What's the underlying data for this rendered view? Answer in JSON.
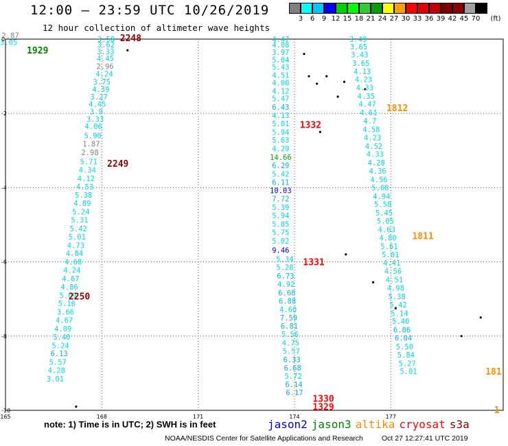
{
  "header": {
    "title": "12:00 — 23:59 UTC 10/26/2019",
    "subtitle": "12 hour collection of altimeter wave heights"
  },
  "colorbar": {
    "unit_label": "(ft)",
    "colors": [
      "#808080",
      "#00ffff",
      "#00c8ff",
      "#0000ff",
      "#00d000",
      "#00ff00",
      "#33cc33",
      "#00a000",
      "#ffff00",
      "#ffa000",
      "#ff0000",
      "#e00000",
      "#c00000",
      "#800000",
      "#8b0000",
      "#a0a0a0",
      "#000000"
    ],
    "ticks": [
      "3",
      "6",
      "9",
      "12",
      "15",
      "18",
      "21",
      "24",
      "27",
      "30",
      "33",
      "36",
      "39",
      "42",
      "45",
      "70"
    ]
  },
  "axes": {
    "x_ticks": [
      165,
      168,
      171,
      174,
      177
    ],
    "y_ticks": [
      0,
      -2,
      -4,
      -6,
      -8,
      -10
    ],
    "x_range": [
      165,
      180.5
    ],
    "y_range": [
      -10,
      0
    ]
  },
  "chart_data": {
    "type": "scatter",
    "tracks": [
      {
        "revolution": "2248",
        "revolution_color": "#8b0000",
        "lat": 0.04,
        "lon": 168.9
      },
      {
        "revolution": "1929",
        "revolution_color": "#008000",
        "lat": -0.3,
        "lon": 166.0
      },
      {
        "revolution": "2249",
        "revolution_color": "#8b0000",
        "lat": -3.35,
        "lon": 168.5
      },
      {
        "revolution": "2250",
        "revolution_color": "#8b0000",
        "lat": -6.92,
        "lon": 167.3
      },
      {
        "revolution": "1812",
        "revolution_color": "#ff8c00",
        "lat": -1.85,
        "lon": 177.2
      },
      {
        "revolution": "1811",
        "revolution_color": "#ff8c00",
        "lat": -5.3,
        "lon": 178.0
      },
      {
        "revolution": "1332",
        "revolution_color": "#ff0000",
        "lat": -2.3,
        "lon": 174.5
      },
      {
        "revolution": "1331",
        "revolution_color": "#ff0000",
        "lat": -6.0,
        "lon": 174.6
      },
      {
        "revolution": "1330",
        "revolution_color": "#ff0000",
        "lat": -9.68,
        "lon": 174.9
      },
      {
        "revolution": "1329",
        "revolution_color": "#ff0000",
        "lat": -9.9,
        "lon": 174.9
      },
      {
        "revolution": "181",
        "revolution_color": "#ff8c00",
        "lat": -8.95,
        "lon": 180.2
      },
      {
        "revolution": "1",
        "revolution_color": "#ff8c00",
        "lat": -9.98,
        "lon": 180.3
      }
    ],
    "points": [
      {
        "lon": 165.15,
        "lat": 0.1,
        "value": "2.87"
      },
      {
        "lon": 165.1,
        "lat": -0.08,
        "value": "3.05"
      },
      {
        "lon": 168.13,
        "lat": 0.0,
        "value": "3.58"
      },
      {
        "lon": 168.13,
        "lat": -0.15,
        "value": "3.62"
      },
      {
        "lon": 168.12,
        "lat": -0.33,
        "value": "3.33"
      },
      {
        "lon": 168.11,
        "lat": -0.52,
        "value": "4.45"
      },
      {
        "lon": 168.1,
        "lat": -0.73,
        "value": "2.96"
      },
      {
        "lon": 168.08,
        "lat": -0.93,
        "value": "4.24"
      },
      {
        "lon": 168.0,
        "lat": -1.15,
        "value": "3.75"
      },
      {
        "lon": 167.97,
        "lat": -1.35,
        "value": "4.39"
      },
      {
        "lon": 167.91,
        "lat": -1.55,
        "value": "3.27"
      },
      {
        "lon": 167.86,
        "lat": -1.75,
        "value": "4.45"
      },
      {
        "lon": 167.83,
        "lat": -1.95,
        "value": "3.9"
      },
      {
        "lon": 167.79,
        "lat": -2.15,
        "value": "3.33"
      },
      {
        "lon": 167.74,
        "lat": -2.35,
        "value": "4.06"
      },
      {
        "lon": 167.72,
        "lat": -2.6,
        "value": "5.90"
      },
      {
        "lon": 167.67,
        "lat": -2.82,
        "value": "1.87"
      },
      {
        "lon": 167.63,
        "lat": -3.05,
        "value": "2.98"
      },
      {
        "lon": 167.59,
        "lat": -3.3,
        "value": "5.71"
      },
      {
        "lon": 167.55,
        "lat": -3.52,
        "value": "4.34"
      },
      {
        "lon": 167.51,
        "lat": -3.75,
        "value": "4.12"
      },
      {
        "lon": 167.47,
        "lat": -3.97,
        "value": "4.53"
      },
      {
        "lon": 167.43,
        "lat": -4.2,
        "value": "5.38"
      },
      {
        "lon": 167.39,
        "lat": -4.42,
        "value": "4.89"
      },
      {
        "lon": 167.35,
        "lat": -4.65,
        "value": "5.24"
      },
      {
        "lon": 167.31,
        "lat": -4.87,
        "value": "5.31"
      },
      {
        "lon": 167.27,
        "lat": -5.1,
        "value": "5.42"
      },
      {
        "lon": 167.23,
        "lat": -5.32,
        "value": "5.01"
      },
      {
        "lon": 167.19,
        "lat": -5.55,
        "value": "4.73"
      },
      {
        "lon": 167.15,
        "lat": -5.77,
        "value": "4.84"
      },
      {
        "lon": 167.11,
        "lat": -6.0,
        "value": "4.68"
      },
      {
        "lon": 167.07,
        "lat": -6.22,
        "value": "4.24"
      },
      {
        "lon": 167.03,
        "lat": -6.45,
        "value": "4.67"
      },
      {
        "lon": 166.99,
        "lat": -6.67,
        "value": "4.86"
      },
      {
        "lon": 166.95,
        "lat": -6.9,
        "value": "5.09"
      },
      {
        "lon": 166.91,
        "lat": -7.12,
        "value": "5.16"
      },
      {
        "lon": 166.87,
        "lat": -7.35,
        "value": "3.66"
      },
      {
        "lon": 166.83,
        "lat": -7.57,
        "value": "4.67"
      },
      {
        "lon": 166.79,
        "lat": -7.8,
        "value": "4.09"
      },
      {
        "lon": 166.75,
        "lat": -8.02,
        "value": "5.40"
      },
      {
        "lon": 166.71,
        "lat": -8.25,
        "value": "5.24"
      },
      {
        "lon": 166.67,
        "lat": -8.47,
        "value": "6.13"
      },
      {
        "lon": 166.63,
        "lat": -8.7,
        "value": "5.57"
      },
      {
        "lon": 166.59,
        "lat": -8.92,
        "value": "4.28"
      },
      {
        "lon": 166.55,
        "lat": -9.15,
        "value": "3.01"
      },
      {
        "lon": 173.57,
        "lat": 0.0,
        "value": "4.47"
      },
      {
        "lon": 173.57,
        "lat": -0.15,
        "value": "4.08"
      },
      {
        "lon": 173.57,
        "lat": -0.35,
        "value": "3.97"
      },
      {
        "lon": 173.57,
        "lat": -0.55,
        "value": "5.04"
      },
      {
        "lon": 173.57,
        "lat": -0.75,
        "value": "5.43"
      },
      {
        "lon": 173.57,
        "lat": -0.97,
        "value": "4.51"
      },
      {
        "lon": 173.57,
        "lat": -1.17,
        "value": "4.00"
      },
      {
        "lon": 173.57,
        "lat": -1.4,
        "value": "4.12"
      },
      {
        "lon": 173.57,
        "lat": -1.6,
        "value": "5.47"
      },
      {
        "lon": 173.57,
        "lat": -1.83,
        "value": "6.43"
      },
      {
        "lon": 173.57,
        "lat": -2.05,
        "value": "4.13"
      },
      {
        "lon": 173.57,
        "lat": -2.27,
        "value": "5.01"
      },
      {
        "lon": 173.57,
        "lat": -2.5,
        "value": "5.94"
      },
      {
        "lon": 173.57,
        "lat": -2.72,
        "value": "5.63"
      },
      {
        "lon": 173.57,
        "lat": -2.95,
        "value": "4.29"
      },
      {
        "lon": 173.57,
        "lat": -3.18,
        "value": "14.66"
      },
      {
        "lon": 173.57,
        "lat": -3.4,
        "value": "6.29"
      },
      {
        "lon": 173.57,
        "lat": -3.63,
        "value": "5.42"
      },
      {
        "lon": 173.57,
        "lat": -3.85,
        "value": "6.11"
      },
      {
        "lon": 173.57,
        "lat": -4.08,
        "value": "10.03"
      },
      {
        "lon": 173.57,
        "lat": -4.3,
        "value": "7.72"
      },
      {
        "lon": 173.57,
        "lat": -4.53,
        "value": "5.39"
      },
      {
        "lon": 173.57,
        "lat": -4.75,
        "value": "5.94"
      },
      {
        "lon": 173.57,
        "lat": -4.98,
        "value": "5.85"
      },
      {
        "lon": 173.57,
        "lat": -5.2,
        "value": "5.75"
      },
      {
        "lon": 173.57,
        "lat": -5.43,
        "value": "5.02"
      },
      {
        "lon": 173.57,
        "lat": -5.68,
        "value": "9.46"
      },
      {
        "lon": 173.7,
        "lat": -5.92,
        "value": "5.34"
      },
      {
        "lon": 173.7,
        "lat": -6.15,
        "value": "5.28"
      },
      {
        "lon": 173.72,
        "lat": -6.38,
        "value": "6.73"
      },
      {
        "lon": 173.74,
        "lat": -6.6,
        "value": "4.92"
      },
      {
        "lon": 173.76,
        "lat": -6.83,
        "value": "6.68"
      },
      {
        "lon": 173.78,
        "lat": -7.05,
        "value": "6.88"
      },
      {
        "lon": 173.8,
        "lat": -7.28,
        "value": "4.60"
      },
      {
        "lon": 173.82,
        "lat": -7.5,
        "value": "7.59"
      },
      {
        "lon": 173.84,
        "lat": -7.73,
        "value": "6.81"
      },
      {
        "lon": 173.86,
        "lat": -7.95,
        "value": "5.56"
      },
      {
        "lon": 173.88,
        "lat": -8.18,
        "value": "4.75"
      },
      {
        "lon": 173.9,
        "lat": -8.4,
        "value": "5.57"
      },
      {
        "lon": 173.92,
        "lat": -8.63,
        "value": "6.33"
      },
      {
        "lon": 173.94,
        "lat": -8.85,
        "value": "6.68"
      },
      {
        "lon": 173.96,
        "lat": -9.08,
        "value": "5.72"
      },
      {
        "lon": 173.98,
        "lat": -9.3,
        "value": "6.14"
      },
      {
        "lon": 174.0,
        "lat": -9.52,
        "value": "6.17"
      },
      {
        "lon": 175.98,
        "lat": 0.0,
        "value": "3.49"
      },
      {
        "lon": 176.0,
        "lat": -0.2,
        "value": "3.65"
      },
      {
        "lon": 176.03,
        "lat": -0.42,
        "value": "3.43"
      },
      {
        "lon": 176.07,
        "lat": -0.65,
        "value": "3.65"
      },
      {
        "lon": 176.11,
        "lat": -0.87,
        "value": "4.13"
      },
      {
        "lon": 176.15,
        "lat": -1.08,
        "value": "4.23"
      },
      {
        "lon": 176.19,
        "lat": -1.3,
        "value": "4.33"
      },
      {
        "lon": 176.23,
        "lat": -1.53,
        "value": "4.35"
      },
      {
        "lon": 176.27,
        "lat": -1.75,
        "value": "4.47"
      },
      {
        "lon": 176.31,
        "lat": -1.98,
        "value": "4.61"
      },
      {
        "lon": 176.35,
        "lat": -2.2,
        "value": "4.7"
      },
      {
        "lon": 176.39,
        "lat": -2.43,
        "value": "4.58"
      },
      {
        "lon": 176.43,
        "lat": -2.65,
        "value": "4.23"
      },
      {
        "lon": 176.47,
        "lat": -2.88,
        "value": "4.52"
      },
      {
        "lon": 176.51,
        "lat": -3.1,
        "value": "4.33"
      },
      {
        "lon": 176.55,
        "lat": -3.33,
        "value": "4.28"
      },
      {
        "lon": 176.59,
        "lat": -3.55,
        "value": "4.36"
      },
      {
        "lon": 176.63,
        "lat": -3.78,
        "value": "4.56"
      },
      {
        "lon": 176.67,
        "lat": -4.0,
        "value": "5.08"
      },
      {
        "lon": 176.71,
        "lat": -4.23,
        "value": "4.94"
      },
      {
        "lon": 176.75,
        "lat": -4.45,
        "value": "5.58"
      },
      {
        "lon": 176.79,
        "lat": -4.68,
        "value": "5.45"
      },
      {
        "lon": 176.83,
        "lat": -4.9,
        "value": "5.05"
      },
      {
        "lon": 176.87,
        "lat": -5.13,
        "value": "4.63"
      },
      {
        "lon": 176.91,
        "lat": -5.35,
        "value": "4.80"
      },
      {
        "lon": 176.95,
        "lat": -5.58,
        "value": "5.61"
      },
      {
        "lon": 176.99,
        "lat": -5.8,
        "value": "5.01"
      },
      {
        "lon": 177.03,
        "lat": -6.03,
        "value": "4.41"
      },
      {
        "lon": 177.07,
        "lat": -6.25,
        "value": "4.56"
      },
      {
        "lon": 177.11,
        "lat": -6.48,
        "value": "4.51"
      },
      {
        "lon": 177.15,
        "lat": -6.7,
        "value": "4.98"
      },
      {
        "lon": 177.19,
        "lat": -6.93,
        "value": "5.38"
      },
      {
        "lon": 177.23,
        "lat": -7.15,
        "value": "5.42"
      },
      {
        "lon": 177.27,
        "lat": -7.38,
        "value": "5.14"
      },
      {
        "lon": 177.31,
        "lat": -7.6,
        "value": "5.40"
      },
      {
        "lon": 177.35,
        "lat": -7.83,
        "value": "6.06"
      },
      {
        "lon": 177.39,
        "lat": -8.05,
        "value": "6.04"
      },
      {
        "lon": 177.43,
        "lat": -8.28,
        "value": "5.50"
      },
      {
        "lon": 177.47,
        "lat": -8.5,
        "value": "5.84"
      },
      {
        "lon": 177.51,
        "lat": -8.73,
        "value": "5.27"
      },
      {
        "lon": 177.55,
        "lat": -8.95,
        "value": "5.01"
      }
    ]
  },
  "islands": [
    {
      "lon": 168.8,
      "lat": -0.3
    },
    {
      "lon": 174.3,
      "lat": -0.4
    },
    {
      "lon": 174.45,
      "lat": -1.0
    },
    {
      "lon": 174.7,
      "lat": -1.2
    },
    {
      "lon": 175.0,
      "lat": -1.0
    },
    {
      "lon": 175.35,
      "lat": -1.55
    },
    {
      "lon": 175.55,
      "lat": -1.15
    },
    {
      "lon": 176.2,
      "lat": -1.35
    },
    {
      "lon": 174.8,
      "lat": -2.5
    },
    {
      "lon": 175.6,
      "lat": -5.8
    },
    {
      "lon": 176.45,
      "lat": -6.55
    },
    {
      "lon": 177.15,
      "lat": -7.25
    },
    {
      "lon": 179.8,
      "lat": -7.5
    },
    {
      "lon": 179.2,
      "lat": -8.0
    },
    {
      "lon": 167.2,
      "lat": -9.9
    }
  ],
  "footer": {
    "note": "note:  1) Time is in UTC; 2) SWH is in feet",
    "satellites": [
      {
        "name": "jason2",
        "color": "#0000cd"
      },
      {
        "name": "jason3",
        "color": "#008000"
      },
      {
        "name": "altika",
        "color": "#ff8c00"
      },
      {
        "name": "cryosat",
        "color": "#ff0000"
      },
      {
        "name": "s3a",
        "color": "#8b0000"
      }
    ],
    "credit": "NOAA/NESDIS Center for Satellite Applications and Research",
    "timestamp": "Oct 27 12:27:41 UTC 2019"
  }
}
